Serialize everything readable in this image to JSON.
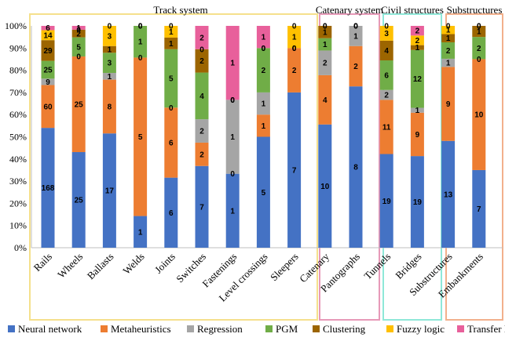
{
  "chart_data": {
    "type": "bar",
    "stacked": true,
    "normalized": true,
    "ylim": [
      0,
      100
    ],
    "yticks": [
      "0%",
      "10%",
      "20%",
      "30%",
      "40%",
      "50%",
      "60%",
      "70%",
      "80%",
      "90%",
      "100%"
    ],
    "categories": [
      "Rails",
      "Wheels",
      "Ballasts",
      "Welds",
      "Joints",
      "Switches",
      "Fastenings",
      "Level crossings",
      "Sleepers",
      "Catenary",
      "Pantographs",
      "Tunnels",
      "Bridges",
      "Substructures",
      "Embankments"
    ],
    "groups": [
      {
        "label": "Track system",
        "color": "#f5e08c",
        "from": 0,
        "to": 8
      },
      {
        "label": "Catenary system",
        "color": "#e79ab8",
        "from": 9,
        "to": 10
      },
      {
        "label": "Civil structures",
        "color": "#8fe8d8",
        "from": 11,
        "to": 12
      },
      {
        "label": "Substructures",
        "color": "#f2b08c",
        "from": 13,
        "to": 14
      }
    ],
    "series": [
      {
        "name": "Neural network",
        "color": "#4472c4",
        "values": [
          168,
          25,
          17,
          1,
          6,
          7,
          1,
          5,
          7,
          10,
          8,
          19,
          19,
          13,
          7
        ]
      },
      {
        "name": "Metaheuristics",
        "color": "#ed7d31",
        "values": [
          60,
          25,
          8,
          5,
          6,
          2,
          0,
          1,
          2,
          4,
          2,
          11,
          9,
          9,
          10
        ]
      },
      {
        "name": "Regression",
        "color": "#a5a5a5",
        "values": [
          9,
          0,
          1,
          0,
          0,
          2,
          1,
          1,
          0,
          2,
          1,
          2,
          1,
          1,
          0
        ]
      },
      {
        "name": "PGM",
        "color": "#70ad47",
        "values": [
          25,
          5,
          3,
          1,
          5,
          4,
          0,
          2,
          0,
          1,
          0,
          6,
          12,
          2,
          2
        ]
      },
      {
        "name": "Clustering",
        "color": "#9c6500",
        "values": [
          29,
          2,
          1,
          0,
          1,
          2,
          0,
          0,
          0,
          1,
          0,
          4,
          1,
          1,
          1
        ]
      },
      {
        "name": "Fuzzy logic",
        "color": "#ffc000",
        "values": [
          14,
          0,
          3,
          0,
          1,
          0,
          0,
          0,
          1,
          0,
          0,
          3,
          2,
          1,
          0
        ]
      },
      {
        "name": "Transfer learning",
        "color": "#e8609b",
        "values": [
          6,
          1,
          0,
          0,
          0,
          2,
          1,
          1,
          0,
          0,
          0,
          0,
          2,
          0,
          0
        ]
      }
    ],
    "legend_position": "bottom",
    "grid": false
  }
}
